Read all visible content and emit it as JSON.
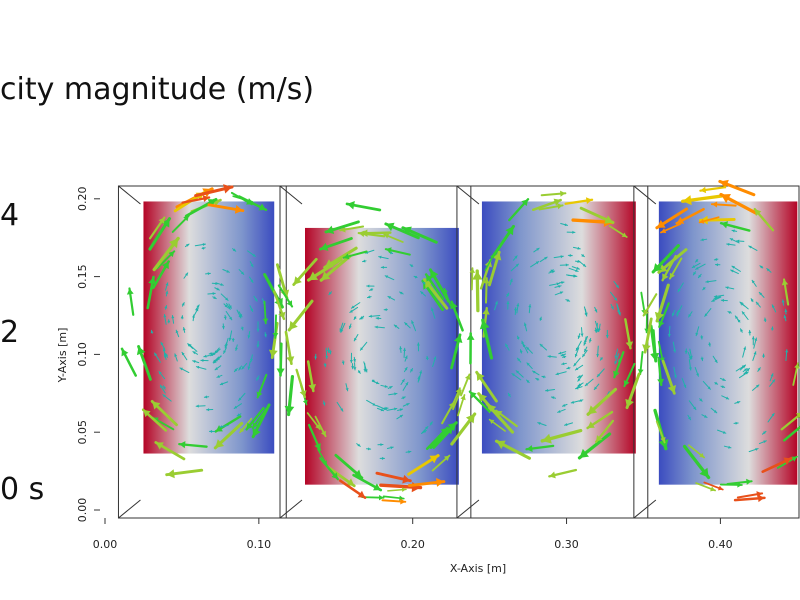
{
  "chart_data": {
    "type": "vector-field",
    "title": "city magnitude (m/s)",
    "legend_labels": [
      "4",
      "2",
      "0 s"
    ],
    "xlabel": "X-Axis [m]",
    "ylabel": "Y-Axis [m]",
    "xlim": [
      0.0,
      0.45
    ],
    "ylim": [
      0.0,
      0.205
    ],
    "x_ticks": [
      "0.00",
      "0.10",
      "0.20",
      "0.30",
      "0.40"
    ],
    "y_ticks": [
      "0.00",
      "0.05",
      "0.10",
      "0.15",
      "0.20"
    ],
    "colormap": {
      "low": "#3b4cc0",
      "mid": "#dddddd",
      "high": "#b40426"
    },
    "arrow_colors": [
      "#20b2aa",
      "#32cd32",
      "#9acd32",
      "#e8c800",
      "#ff8c00",
      "#e8501a"
    ],
    "cells": [
      {
        "x_range": [
          0.025,
          0.11
        ],
        "y_range": [
          0.035,
          0.197
        ],
        "hot_side": "left"
      },
      {
        "x_range": [
          0.13,
          0.23
        ],
        "y_range": [
          0.015,
          0.18
        ],
        "hot_side": "left"
      },
      {
        "x_range": [
          0.245,
          0.345
        ],
        "y_range": [
          0.035,
          0.197
        ],
        "hot_side": "right"
      },
      {
        "x_range": [
          0.36,
          0.45
        ],
        "y_range": [
          0.015,
          0.197
        ],
        "hot_side": "right"
      }
    ]
  }
}
